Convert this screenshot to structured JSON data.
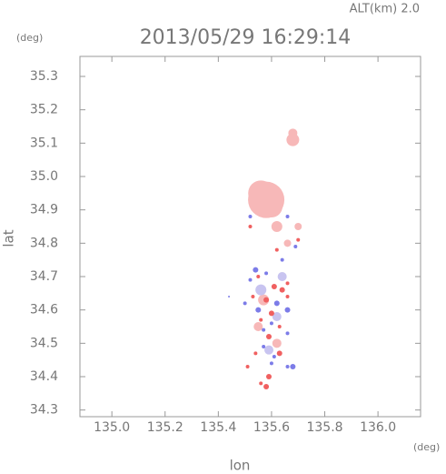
{
  "chart_data": {
    "type": "scatter",
    "title": "2013/05/29 16:29:14",
    "subtitle": "ALT(km) 2.0",
    "y_unit": "(deg)",
    "x_unit": "(deg)",
    "ylabel": "lat",
    "xlabel": "lon",
    "xlim": [
      134.88,
      136.16
    ],
    "ylim": [
      34.28,
      35.36
    ],
    "xticks": [
      {
        "value": 135.0,
        "label": "135.0"
      },
      135.2,
      135.4,
      135.6,
      135.8,
      {
        "value": 136.0,
        "label": "136.0"
      }
    ],
    "yticks": [
      34.3,
      34.4,
      34.5,
      34.6,
      34.7,
      34.8,
      34.9,
      {
        "value": 35.0,
        "label": "35.0"
      },
      35.1,
      35.2,
      35.3
    ],
    "series": [
      {
        "color": "#f7b8b8",
        "x": [
          135.58,
          135.56,
          135.6,
          135.68,
          135.68,
          135.62,
          135.7,
          135.66,
          135.57,
          135.62,
          135.55
        ],
        "values": [
          34.93,
          34.95,
          34.91,
          35.11,
          35.13,
          34.85,
          34.85,
          34.8,
          34.63,
          34.5,
          34.55
        ],
        "sizes": [
          20,
          14,
          12,
          7,
          5,
          6,
          4,
          4,
          6,
          5,
          5
        ]
      },
      {
        "color": "#c8c4f0",
        "x": [
          135.56,
          135.62,
          135.59,
          135.64
        ],
        "values": [
          34.66,
          34.58,
          34.48,
          34.7
        ],
        "sizes": [
          6,
          5,
          5,
          5
        ]
      },
      {
        "color": "#f06060",
        "x": [
          135.52,
          135.62,
          135.7,
          135.55,
          135.61,
          135.64,
          135.66,
          135.58,
          135.6,
          135.56,
          135.63,
          135.59,
          135.54,
          135.63,
          135.51,
          135.59,
          135.56,
          135.58,
          135.66,
          135.53
        ],
        "values": [
          34.85,
          34.78,
          34.81,
          34.7,
          34.67,
          34.66,
          34.68,
          34.63,
          34.59,
          34.57,
          34.55,
          34.52,
          34.47,
          34.47,
          34.43,
          34.4,
          34.38,
          34.37,
          34.64,
          34.64
        ],
        "sizes": [
          2,
          2,
          2,
          2,
          3,
          3,
          2,
          3,
          3,
          2,
          2,
          3,
          2,
          3,
          2,
          3,
          2,
          3,
          2,
          2
        ]
      },
      {
        "color": "#7c7ce8",
        "x": [
          135.54,
          135.52,
          135.58,
          135.62,
          135.66,
          135.5,
          135.55,
          135.6,
          135.57,
          135.66,
          135.68,
          135.66,
          135.57,
          135.44,
          135.61,
          135.69,
          135.66,
          135.52,
          135.64,
          135.6
        ],
        "values": [
          34.72,
          34.69,
          34.71,
          34.62,
          34.6,
          34.62,
          34.6,
          34.56,
          34.54,
          34.53,
          34.43,
          34.43,
          34.49,
          34.64,
          34.46,
          34.79,
          34.88,
          34.88,
          34.75,
          34.44
        ],
        "sizes": [
          3,
          2,
          2,
          3,
          3,
          2,
          3,
          2,
          2,
          2,
          3,
          2,
          2,
          1,
          2,
          2,
          2,
          2,
          2,
          2
        ]
      }
    ]
  }
}
